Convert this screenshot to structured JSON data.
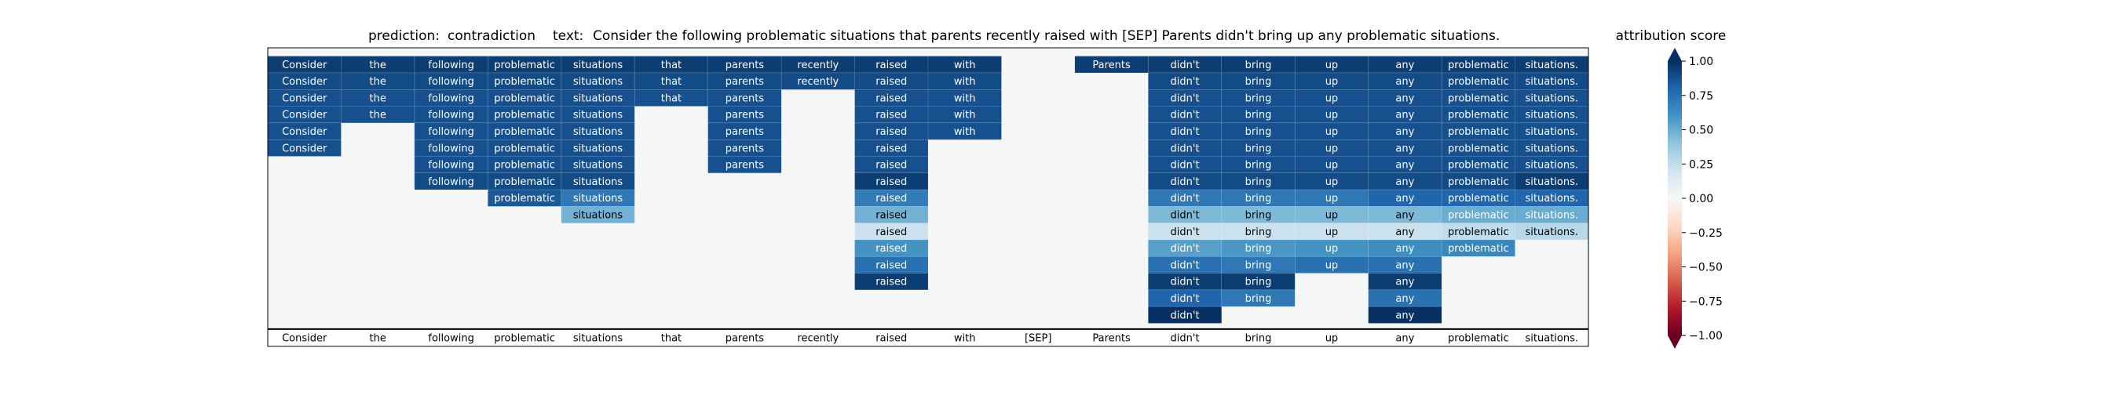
{
  "chart_data": {
    "type": "heatmap",
    "title": {
      "prediction_label": "prediction:",
      "prediction_value": "contradiction",
      "text_label": "text:",
      "text_value": "Consider the following problematic situations that parents recently raised with [SEP] Parents didn't bring up any problematic situations."
    },
    "x_tokens": [
      "Consider",
      "the",
      "following",
      "problematic",
      "situations",
      "that",
      "parents",
      "recently",
      "raised",
      "with",
      "[SEP]",
      "Parents",
      "didn't",
      "bring",
      "up",
      "any",
      "problematic",
      "situations."
    ],
    "rows": [
      {
        "cells": [
          {
            "c": 0,
            "v": 0.95
          },
          {
            "c": 1,
            "v": 0.95
          },
          {
            "c": 2,
            "v": 0.95
          },
          {
            "c": 3,
            "v": 0.95
          },
          {
            "c": 4,
            "v": 0.95
          },
          {
            "c": 5,
            "v": 0.95
          },
          {
            "c": 6,
            "v": 0.95
          },
          {
            "c": 7,
            "v": 0.95
          },
          {
            "c": 8,
            "v": 0.95
          },
          {
            "c": 9,
            "v": 0.95
          },
          {
            "c": 11,
            "v": 0.95
          },
          {
            "c": 12,
            "v": 0.95
          },
          {
            "c": 13,
            "v": 0.95
          },
          {
            "c": 14,
            "v": 0.95
          },
          {
            "c": 15,
            "v": 0.95
          },
          {
            "c": 16,
            "v": 0.95
          },
          {
            "c": 17,
            "v": 0.95
          }
        ]
      },
      {
        "cells": [
          {
            "c": 0,
            "v": 0.9
          },
          {
            "c": 1,
            "v": 0.9
          },
          {
            "c": 2,
            "v": 0.9
          },
          {
            "c": 3,
            "v": 0.9
          },
          {
            "c": 4,
            "v": 0.9
          },
          {
            "c": 5,
            "v": 0.9
          },
          {
            "c": 6,
            "v": 0.9
          },
          {
            "c": 7,
            "v": 0.9
          },
          {
            "c": 8,
            "v": 0.9
          },
          {
            "c": 9,
            "v": 0.9
          },
          {
            "c": 12,
            "v": 0.9
          },
          {
            "c": 13,
            "v": 0.9
          },
          {
            "c": 14,
            "v": 0.9
          },
          {
            "c": 15,
            "v": 0.9
          },
          {
            "c": 16,
            "v": 0.9
          },
          {
            "c": 17,
            "v": 0.9
          }
        ]
      },
      {
        "cells": [
          {
            "c": 0,
            "v": 0.88
          },
          {
            "c": 1,
            "v": 0.88
          },
          {
            "c": 2,
            "v": 0.88
          },
          {
            "c": 3,
            "v": 0.88
          },
          {
            "c": 4,
            "v": 0.88
          },
          {
            "c": 5,
            "v": 0.88
          },
          {
            "c": 6,
            "v": 0.88
          },
          {
            "c": 8,
            "v": 0.88
          },
          {
            "c": 9,
            "v": 0.88
          },
          {
            "c": 12,
            "v": 0.88
          },
          {
            "c": 13,
            "v": 0.88
          },
          {
            "c": 14,
            "v": 0.88
          },
          {
            "c": 15,
            "v": 0.88
          },
          {
            "c": 16,
            "v": 0.88
          },
          {
            "c": 17,
            "v": 0.88
          }
        ]
      },
      {
        "cells": [
          {
            "c": 0,
            "v": 0.88
          },
          {
            "c": 1,
            "v": 0.88
          },
          {
            "c": 2,
            "v": 0.88
          },
          {
            "c": 3,
            "v": 0.88
          },
          {
            "c": 4,
            "v": 0.88
          },
          {
            "c": 6,
            "v": 0.88
          },
          {
            "c": 8,
            "v": 0.88
          },
          {
            "c": 9,
            "v": 0.88
          },
          {
            "c": 12,
            "v": 0.88
          },
          {
            "c": 13,
            "v": 0.88
          },
          {
            "c": 14,
            "v": 0.88
          },
          {
            "c": 15,
            "v": 0.88
          },
          {
            "c": 16,
            "v": 0.88
          },
          {
            "c": 17,
            "v": 0.88
          }
        ]
      },
      {
        "cells": [
          {
            "c": 0,
            "v": 0.88
          },
          {
            "c": 2,
            "v": 0.88
          },
          {
            "c": 3,
            "v": 0.88
          },
          {
            "c": 4,
            "v": 0.88
          },
          {
            "c": 6,
            "v": 0.88
          },
          {
            "c": 8,
            "v": 0.88
          },
          {
            "c": 9,
            "v": 0.88
          },
          {
            "c": 12,
            "v": 0.88
          },
          {
            "c": 13,
            "v": 0.88
          },
          {
            "c": 14,
            "v": 0.88
          },
          {
            "c": 15,
            "v": 0.88
          },
          {
            "c": 16,
            "v": 0.88
          },
          {
            "c": 17,
            "v": 0.88
          }
        ]
      },
      {
        "cells": [
          {
            "c": 0,
            "v": 0.88
          },
          {
            "c": 2,
            "v": 0.88
          },
          {
            "c": 3,
            "v": 0.88
          },
          {
            "c": 4,
            "v": 0.88
          },
          {
            "c": 6,
            "v": 0.88
          },
          {
            "c": 8,
            "v": 0.88
          },
          {
            "c": 12,
            "v": 0.88
          },
          {
            "c": 13,
            "v": 0.88
          },
          {
            "c": 14,
            "v": 0.88
          },
          {
            "c": 15,
            "v": 0.88
          },
          {
            "c": 16,
            "v": 0.88
          },
          {
            "c": 17,
            "v": 0.88
          }
        ]
      },
      {
        "cells": [
          {
            "c": 2,
            "v": 0.88
          },
          {
            "c": 3,
            "v": 0.88
          },
          {
            "c": 4,
            "v": 0.88
          },
          {
            "c": 6,
            "v": 0.88
          },
          {
            "c": 8,
            "v": 0.88
          },
          {
            "c": 12,
            "v": 0.88
          },
          {
            "c": 13,
            "v": 0.88
          },
          {
            "c": 14,
            "v": 0.88
          },
          {
            "c": 15,
            "v": 0.88
          },
          {
            "c": 16,
            "v": 0.88
          },
          {
            "c": 17,
            "v": 0.88
          }
        ]
      },
      {
        "cells": [
          {
            "c": 2,
            "v": 0.9
          },
          {
            "c": 3,
            "v": 0.9
          },
          {
            "c": 4,
            "v": 0.9
          },
          {
            "c": 8,
            "v": 0.95
          },
          {
            "c": 12,
            "v": 0.9
          },
          {
            "c": 13,
            "v": 0.9
          },
          {
            "c": 14,
            "v": 0.9
          },
          {
            "c": 15,
            "v": 0.9
          },
          {
            "c": 16,
            "v": 0.9
          },
          {
            "c": 17,
            "v": 0.95
          }
        ]
      },
      {
        "cells": [
          {
            "c": 3,
            "v": 0.85
          },
          {
            "c": 4,
            "v": 0.72
          },
          {
            "c": 8,
            "v": 0.7
          },
          {
            "c": 12,
            "v": 0.72
          },
          {
            "c": 13,
            "v": 0.72
          },
          {
            "c": 14,
            "v": 0.72
          },
          {
            "c": 15,
            "v": 0.8
          },
          {
            "c": 16,
            "v": 0.8
          },
          {
            "c": 17,
            "v": 0.8
          }
        ]
      },
      {
        "cells": [
          {
            "c": 4,
            "v": 0.48
          },
          {
            "c": 8,
            "v": 0.48
          },
          {
            "c": 12,
            "v": 0.45
          },
          {
            "c": 13,
            "v": 0.45
          },
          {
            "c": 14,
            "v": 0.45
          },
          {
            "c": 15,
            "v": 0.45
          },
          {
            "c": 16,
            "v": 0.5
          },
          {
            "c": 17,
            "v": 0.5
          }
        ]
      },
      {
        "cells": [
          {
            "c": 8,
            "v": 0.22
          },
          {
            "c": 12,
            "v": 0.22
          },
          {
            "c": 13,
            "v": 0.22
          },
          {
            "c": 14,
            "v": 0.22
          },
          {
            "c": 15,
            "v": 0.22
          },
          {
            "c": 16,
            "v": 0.25
          },
          {
            "c": 17,
            "v": 0.28
          }
        ]
      },
      {
        "cells": [
          {
            "c": 8,
            "v": 0.6
          },
          {
            "c": 12,
            "v": 0.55
          },
          {
            "c": 13,
            "v": 0.58
          },
          {
            "c": 14,
            "v": 0.6
          },
          {
            "c": 15,
            "v": 0.62
          },
          {
            "c": 16,
            "v": 0.65
          }
        ]
      },
      {
        "cells": [
          {
            "c": 8,
            "v": 0.75
          },
          {
            "c": 12,
            "v": 0.75
          },
          {
            "c": 13,
            "v": 0.72
          },
          {
            "c": 14,
            "v": 0.75
          },
          {
            "c": 15,
            "v": 0.75
          }
        ]
      },
      {
        "cells": [
          {
            "c": 8,
            "v": 0.95
          },
          {
            "c": 12,
            "v": 0.95
          },
          {
            "c": 13,
            "v": 0.95
          },
          {
            "c": 15,
            "v": 0.95
          }
        ]
      },
      {
        "cells": [
          {
            "c": 12,
            "v": 0.8
          },
          {
            "c": 13,
            "v": 0.72
          },
          {
            "c": 15,
            "v": 0.75
          }
        ]
      },
      {
        "cells": [
          {
            "c": 12,
            "v": 1.0
          },
          {
            "c": 15,
            "v": 1.0
          }
        ]
      }
    ],
    "colorbar": {
      "label": "attribution score",
      "ticks": [
        1.0,
        0.75,
        0.5,
        0.25,
        0.0,
        -0.25,
        -0.5,
        -0.75,
        -1.0
      ],
      "tick_labels": [
        "1.00",
        "0.75",
        "0.50",
        "0.25",
        "0.00",
        "−0.25",
        "−0.50",
        "−0.75",
        "−1.00"
      ],
      "vmin": -1.0,
      "vmax": 1.0
    },
    "colors": {
      "cmap_stops": [
        "#67001f",
        "#b2182b",
        "#d6604d",
        "#f4a582",
        "#fddbc7",
        "#f7f7f7",
        "#d1e5f0",
        "#92c5de",
        "#4393c3",
        "#2166ac",
        "#053061"
      ],
      "empty_cell": "#f5f7f7",
      "axis": "#000000"
    }
  }
}
